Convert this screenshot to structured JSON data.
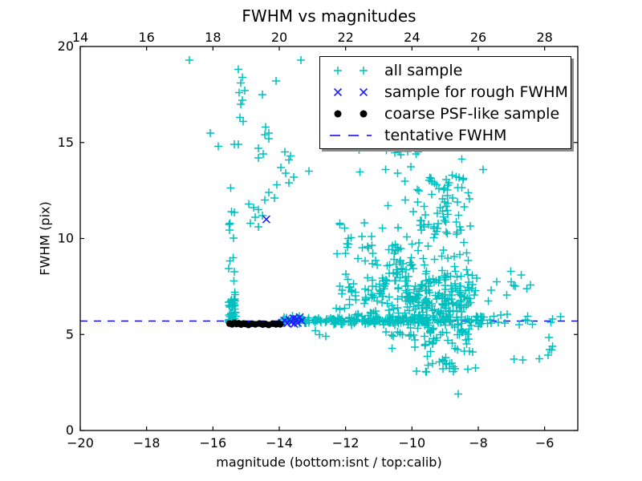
{
  "chart_data": {
    "type": "scatter",
    "title": "FWHM vs magnitudes",
    "xlabel": "magnitude (bottom:isnt / top:calib)",
    "ylabel": "FWHM (pix)",
    "xlim": [
      -20,
      -5
    ],
    "ylim": [
      0,
      20
    ],
    "grid": false,
    "legend_position": "upper right",
    "axes_note": "top calib axis ticks align with bottom isnt ticks (calib = isnt + 34)",
    "xticks_bottom": {
      "values": [
        -20,
        -18,
        -16,
        -14,
        -12,
        -10,
        -8,
        -6
      ],
      "labels": [
        "−20",
        "−18",
        "−16",
        "−14",
        "−12",
        "−10",
        "−8",
        "−6"
      ]
    },
    "xticks_top": {
      "values_isnt": [
        -20,
        -18,
        -16,
        -14,
        -12,
        -10,
        -8,
        -6
      ],
      "labels": [
        "14",
        "16",
        "18",
        "20",
        "22",
        "24",
        "26",
        "28"
      ]
    },
    "yticks": {
      "values": [
        0,
        5,
        10,
        15,
        20
      ],
      "labels": [
        "0",
        "5",
        "10",
        "15",
        "20"
      ]
    },
    "tentative_fwhm": 5.7,
    "series": [
      {
        "name": "all sample",
        "marker": "plus",
        "color": "#00bfbf",
        "points": [
          [
            -16.71,
            19.3
          ],
          [
            -13.35,
            19.3
          ],
          [
            -15.23,
            18.8
          ],
          [
            -15.11,
            18.4
          ],
          [
            -15.16,
            18.1
          ],
          [
            -15.04,
            17.7
          ],
          [
            -15.21,
            17.6
          ],
          [
            -15.11,
            17.2
          ],
          [
            -15.16,
            17.0
          ],
          [
            -14.51,
            17.5
          ],
          [
            -14.1,
            18.2
          ],
          [
            -15.18,
            16.3
          ],
          [
            -15.09,
            16.1
          ],
          [
            -14.41,
            15.8
          ],
          [
            -14.31,
            15.5
          ],
          [
            -14.43,
            15.4
          ],
          [
            -14.31,
            15.2
          ],
          [
            -14.63,
            14.7
          ],
          [
            -14.48,
            14.4
          ],
          [
            -14.63,
            14.2
          ],
          [
            -16.08,
            15.5
          ],
          [
            -15.84,
            14.8
          ],
          [
            -15.35,
            14.9
          ],
          [
            -15.23,
            14.9
          ],
          [
            -13.83,
            14.5
          ],
          [
            -13.66,
            14.3
          ],
          [
            -13.71,
            14.1
          ],
          [
            -13.95,
            13.7
          ],
          [
            -13.1,
            13.5
          ],
          [
            -13.81,
            13.4
          ],
          [
            -13.57,
            13.2
          ],
          [
            -13.71,
            12.9
          ],
          [
            -14.07,
            12.8
          ],
          [
            -14.31,
            12.4
          ],
          [
            -14.15,
            12.1
          ],
          [
            -14.43,
            12.0
          ],
          [
            -14.92,
            11.8
          ],
          [
            -14.78,
            11.6
          ],
          [
            -14.63,
            11.5
          ],
          [
            -14.51,
            11.2
          ],
          [
            -14.72,
            11.1
          ],
          [
            -14.87,
            10.8
          ],
          [
            -14.63,
            10.6
          ],
          [
            -7.85,
            13.6
          ],
          [
            -8.6,
            1.9
          ],
          [
            -12.91,
            5.2
          ],
          [
            -12.79,
            5.0
          ],
          [
            -12.6,
            4.9
          ]
        ],
        "clusters": [
          {
            "id": "left-column-dense",
            "n": 48,
            "seed": 11,
            "x": {
              "dist": "uniform",
              "min": -15.53,
              "max": -15.3
            },
            "y": {
              "dist": "gauss",
              "mu": 6.1,
              "sigma": 0.55,
              "min": 5.5,
              "max": 7.7
            }
          },
          {
            "id": "left-column-upper",
            "n": 12,
            "seed": 22,
            "x": {
              "dist": "uniform",
              "min": -15.55,
              "max": -15.3
            },
            "y": {
              "dist": "uniform",
              "min": 7.7,
              "max": 13.2
            }
          },
          {
            "id": "stellar-locus",
            "n": 170,
            "seed": 33,
            "x": {
              "dist": "uniform",
              "min": -13.95,
              "max": -9.5
            },
            "y": {
              "dist": "gauss",
              "mu": 5.72,
              "sigma": 0.1,
              "min": 5.4,
              "max": 6.05
            }
          },
          {
            "id": "locus-right",
            "n": 40,
            "seed": 44,
            "x": {
              "dist": "uniform",
              "min": -9.5,
              "max": -7.6
            },
            "y": {
              "dist": "gauss",
              "mu": 5.72,
              "sigma": 0.13,
              "min": 5.3,
              "max": 6.1
            }
          },
          {
            "id": "locus-far-right",
            "n": 12,
            "seed": 55,
            "x": {
              "dist": "uniform",
              "min": -7.6,
              "max": -5.15
            },
            "y": {
              "dist": "gauss",
              "mu": 5.75,
              "sigma": 0.15,
              "min": 5.4,
              "max": 6.1
            }
          },
          {
            "id": "cloud-core",
            "n": 270,
            "seed": 66,
            "x": {
              "dist": "gauss",
              "mu": -9.3,
              "sigma": 0.75,
              "min": -11.0,
              "max": -7.9
            },
            "y": {
              "dist": "gauss",
              "mu": 6.8,
              "sigma": 1.4,
              "min": 4.2,
              "max": 10.2
            }
          },
          {
            "id": "cloud-left",
            "n": 110,
            "seed": 77,
            "x": {
              "dist": "uniform",
              "min": -12.3,
              "max": -10.0
            },
            "y": {
              "dist": "gauss",
              "mu": 7.5,
              "sigma": 1.8,
              "min": 5.9,
              "max": 12.6
            }
          },
          {
            "id": "cloud-upper",
            "n": 70,
            "seed": 88,
            "x": {
              "dist": "gauss",
              "mu": -9.1,
              "sigma": 0.55,
              "min": -10.6,
              "max": -7.9
            },
            "y": {
              "dist": "uniform",
              "min": 10.0,
              "max": 13.3
            }
          },
          {
            "id": "cloud-top",
            "n": 14,
            "seed": 99,
            "x": {
              "dist": "uniform",
              "min": -11.6,
              "max": -8.4
            },
            "y": {
              "dist": "uniform",
              "min": 13.3,
              "max": 14.9
            }
          },
          {
            "id": "below-line",
            "n": 38,
            "seed": 111,
            "x": {
              "dist": "gauss",
              "mu": -8.9,
              "sigma": 0.5,
              "min": -10.0,
              "max": -7.5
            },
            "y": {
              "dist": "uniform",
              "min": 3.0,
              "max": 5.3
            }
          },
          {
            "id": "right-low-sparse",
            "n": 8,
            "seed": 122,
            "x": {
              "dist": "uniform",
              "min": -7.2,
              "max": -5.3
            },
            "y": {
              "dist": "uniform",
              "min": 3.6,
              "max": 5.1
            }
          },
          {
            "id": "right-taper",
            "n": 12,
            "seed": 133,
            "x": {
              "dist": "uniform",
              "min": -8.0,
              "max": -6.3
            },
            "y": {
              "dist": "uniform",
              "min": 6.0,
              "max": 8.5
            }
          }
        ]
      },
      {
        "name": "sample for rough FWHM",
        "marker": "x",
        "color": "#2020ff",
        "points": [
          [
            -14.39,
            11.0
          ],
          [
            -13.92,
            5.62
          ],
          [
            -13.83,
            5.72
          ],
          [
            -13.76,
            5.58
          ],
          [
            -13.7,
            5.78
          ],
          [
            -13.63,
            5.65
          ],
          [
            -13.57,
            5.85
          ],
          [
            -13.5,
            5.7
          ],
          [
            -13.44,
            5.6
          ],
          [
            -13.38,
            5.9
          ],
          [
            -13.33,
            5.72
          ],
          [
            -13.55,
            5.55
          ],
          [
            -13.47,
            5.8
          ]
        ]
      },
      {
        "name": "coarse PSF-like sample",
        "marker": "dot",
        "color": "#000000",
        "points": [
          [
            -15.5,
            5.57
          ],
          [
            -15.42,
            5.53
          ],
          [
            -15.35,
            5.6
          ],
          [
            -15.28,
            5.55
          ],
          [
            -15.22,
            5.58
          ],
          [
            -15.15,
            5.52
          ],
          [
            -15.08,
            5.57
          ],
          [
            -15.02,
            5.55
          ],
          [
            -14.93,
            5.5
          ],
          [
            -14.82,
            5.56
          ],
          [
            -14.72,
            5.53
          ],
          [
            -14.6,
            5.57
          ],
          [
            -14.5,
            5.52
          ],
          [
            -14.42,
            5.55
          ],
          [
            -14.32,
            5.5
          ],
          [
            -14.2,
            5.56
          ],
          [
            -14.1,
            5.53
          ],
          [
            -14.02,
            5.57
          ],
          [
            -13.97,
            5.53
          ]
        ]
      },
      {
        "name": "tentative FWHM",
        "marker": "dashed-line",
        "color": "#0000ee",
        "value": 5.7
      }
    ]
  }
}
